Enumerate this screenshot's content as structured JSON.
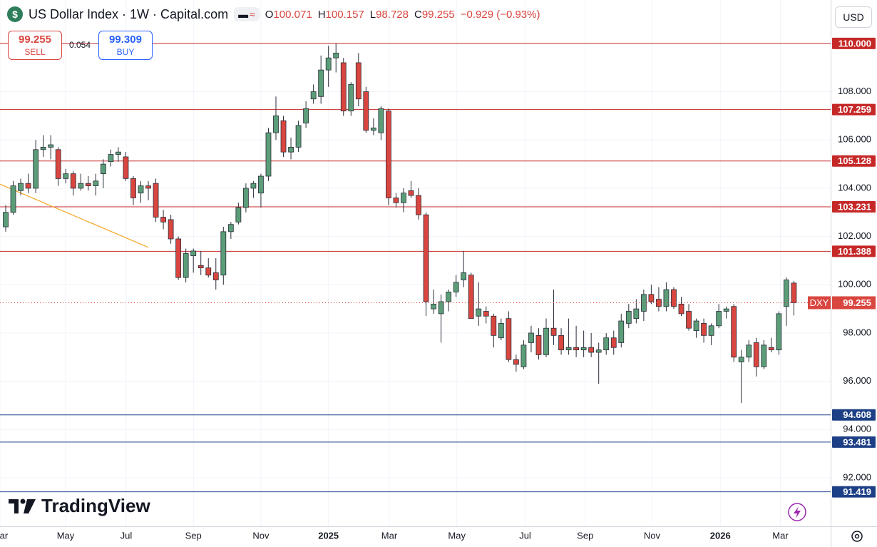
{
  "header": {
    "symbol": "US Dollar Index · 1W · Capital.com",
    "ohlc": [
      {
        "label": "O",
        "value": "100.071"
      },
      {
        "label": "H",
        "value": "100.157"
      },
      {
        "label": "L",
        "value": "98.728"
      },
      {
        "label": "C",
        "value": "99.255"
      }
    ],
    "change": "−0.929 (−0.93%)",
    "currency": "USD"
  },
  "trade": {
    "sell_price": "99.255",
    "sell_label": "SELL",
    "spread": "0.054",
    "buy_price": "99.309",
    "buy_label": "BUY"
  },
  "logo": "TradingView",
  "chart_data": {
    "type": "candlestick",
    "candles": {
      "open": [
        102.4,
        103.0,
        103.9,
        104.2,
        104.0,
        105.6,
        105.7,
        105.6,
        104.4,
        104.6,
        104.0,
        104.2,
        104.1,
        104.6,
        105.1,
        105.4,
        105.3,
        104.4,
        103.8,
        104.1,
        104.2,
        102.8,
        102.7,
        101.9,
        100.3,
        101.2,
        100.8,
        100.7,
        100.5,
        100.4,
        102.2,
        102.6,
        103.2,
        104.0,
        103.8,
        104.5,
        106.3,
        106.8,
        105.5,
        105.7,
        106.7,
        107.7,
        107.8,
        108.9,
        109.4,
        109.2,
        107.2,
        109.2,
        108.0,
        106.4,
        106.3,
        107.2,
        103.6,
        103.4,
        103.9,
        103.7,
        102.9,
        99.0,
        98.8,
        99.3,
        99.7,
        100.2,
        100.4,
        98.7,
        98.9,
        98.7,
        97.8,
        98.6,
        96.9,
        96.6,
        97.6,
        97.9,
        97.1,
        98.2,
        97.9,
        97.3,
        97.4,
        97.3,
        97.4,
        97.2,
        97.3,
        97.8,
        97.6,
        98.4,
        98.6,
        98.9,
        99.6,
        99.4,
        99.1,
        99.8,
        99.2,
        98.9,
        98.1,
        98.4,
        97.9,
        98.3,
        98.9,
        99.1,
        96.8,
        97.0,
        97.6,
        96.6,
        97.4,
        97.3,
        99.1,
        100.071
      ],
      "high": [
        103.3,
        104.3,
        104.4,
        104.6,
        106.0,
        106.2,
        106.2,
        105.7,
        104.8,
        104.7,
        104.6,
        104.5,
        104.6,
        105.2,
        105.6,
        105.7,
        105.5,
        104.5,
        104.3,
        104.3,
        104.4,
        103.1,
        102.9,
        102.0,
        101.5,
        101.5,
        101.4,
        101.1,
        101.1,
        102.4,
        102.6,
        103.4,
        104.2,
        104.3,
        104.6,
        106.5,
        107.8,
        107.0,
        106.1,
        106.8,
        107.6,
        108.3,
        109.5,
        109.9,
        110.0,
        109.4,
        108.4,
        109.6,
        108.2,
        106.9,
        107.4,
        107.3,
        103.8,
        104.0,
        104.3,
        104.0,
        103.0,
        99.8,
        99.6,
        99.8,
        100.4,
        101.4,
        100.5,
        100.1,
        99.1,
        98.8,
        98.6,
        98.9,
        97.1,
        97.7,
        98.3,
        98.2,
        98.6,
        99.8,
        98.2,
        98.6,
        98.3,
        98.1,
        98.0,
        97.6,
        98.0,
        98.1,
        98.8,
        99.2,
        99.4,
        99.8,
        100.0,
        99.9,
        100.1,
        99.9,
        99.5,
        99.2,
        98.6,
        98.6,
        98.4,
        99.2,
        99.1,
        99.2,
        97.3,
        97.7,
        97.8,
        97.7,
        97.8,
        98.9,
        100.3,
        100.157
      ],
      "low": [
        102.2,
        102.9,
        103.7,
        103.8,
        103.8,
        105.3,
        105.2,
        104.1,
        104.2,
        103.7,
        103.9,
        103.9,
        103.7,
        104.0,
        104.9,
        105.1,
        104.3,
        103.3,
        103.4,
        103.5,
        102.6,
        102.3,
        101.7,
        100.2,
        100.1,
        100.5,
        100.4,
        100.3,
        99.8,
        100.0,
        101.9,
        102.5,
        103.0,
        103.6,
        103.2,
        104.3,
        106.0,
        105.3,
        105.2,
        105.5,
        106.5,
        107.5,
        107.5,
        108.2,
        108.8,
        107.0,
        107.0,
        107.4,
        106.3,
        106.2,
        106.0,
        103.3,
        103.2,
        103.0,
        103.6,
        102.7,
        98.7,
        98.8,
        97.6,
        98.9,
        99.5,
        99.9,
        98.6,
        98.3,
        98.4,
        97.4,
        97.7,
        96.8,
        96.4,
        96.5,
        97.2,
        96.9,
        97.0,
        97.5,
        97.1,
        97.1,
        97.0,
        97.0,
        97.0,
        95.9,
        97.1,
        97.1,
        97.4,
        98.2,
        98.4,
        98.5,
        99.2,
        98.9,
        98.9,
        99.0,
        98.7,
        98.1,
        97.8,
        97.6,
        97.5,
        98.2,
        98.6,
        96.8,
        95.1,
        96.8,
        96.2,
        96.5,
        97.2,
        97.1,
        98.3,
        98.728
      ],
      "close": [
        103.0,
        104.1,
        104.2,
        104.0,
        105.6,
        105.7,
        105.8,
        104.4,
        104.6,
        104.0,
        104.2,
        104.1,
        104.3,
        105.0,
        105.4,
        105.5,
        104.4,
        103.6,
        104.1,
        104.0,
        102.8,
        102.6,
        101.9,
        100.3,
        101.3,
        101.4,
        100.7,
        100.4,
        100.2,
        102.2,
        102.5,
        103.2,
        104.0,
        104.2,
        104.5,
        106.3,
        107.0,
        105.5,
        105.7,
        106.6,
        107.3,
        108.0,
        108.9,
        109.4,
        109.6,
        107.2,
        108.3,
        107.7,
        106.4,
        106.5,
        107.3,
        103.6,
        103.4,
        103.8,
        103.7,
        102.9,
        99.3,
        99.2,
        99.3,
        99.7,
        100.1,
        100.5,
        98.6,
        99.0,
        98.7,
        97.9,
        98.4,
        96.9,
        96.7,
        97.5,
        98.0,
        97.1,
        98.2,
        97.9,
        97.3,
        97.4,
        97.3,
        97.4,
        97.2,
        97.3,
        97.8,
        97.4,
        98.5,
        98.9,
        99.0,
        99.6,
        99.3,
        99.1,
        99.8,
        99.1,
        98.8,
        98.2,
        98.5,
        97.9,
        98.3,
        98.9,
        99.0,
        97.0,
        97.0,
        97.5,
        96.6,
        97.5,
        97.3,
        98.8,
        100.2,
        99.255
      ],
      "up_color": "#5b9d78",
      "down_color": "#d9463f"
    },
    "xlim": [
      -0.76,
      109.9
    ],
    "xticks": [
      {
        "value": -0.76,
        "label": "Mar"
      },
      {
        "value": 7.98,
        "label": "May"
      },
      {
        "value": 16.05,
        "label": "Jul"
      },
      {
        "value": 25.0,
        "label": "Sep"
      },
      {
        "value": 34.0,
        "label": "Nov"
      },
      {
        "value": 43.0,
        "label": "2025"
      },
      {
        "value": 51.1,
        "label": "Mar"
      },
      {
        "value": 60.1,
        "label": "May"
      },
      {
        "value": 69.2,
        "label": "Jul"
      },
      {
        "value": 77.2,
        "label": "Sep"
      },
      {
        "value": 86.1,
        "label": "Nov"
      },
      {
        "value": 95.2,
        "label": "2026"
      },
      {
        "value": 103.2,
        "label": "Mar"
      }
    ],
    "ylim": [
      89.99,
      111.8
    ],
    "yticks": [
      {
        "value": 92,
        "label": "92.000"
      },
      {
        "value": 94,
        "label": "94.000"
      },
      {
        "value": 96,
        "label": "96.000"
      },
      {
        "value": 98,
        "label": "98.000"
      },
      {
        "value": 100,
        "label": "100.000"
      },
      {
        "value": 102,
        "label": "102.000"
      },
      {
        "value": 104,
        "label": "104.000"
      },
      {
        "value": 106,
        "label": "106.000"
      },
      {
        "value": 108,
        "label": "108.000"
      }
    ],
    "grid": true,
    "levels": [
      {
        "value": 110,
        "label": "110.000",
        "color": "#c62828"
      },
      {
        "value": 107.259,
        "label": "107.259",
        "color": "#c62828"
      },
      {
        "value": 105.128,
        "label": "105.128",
        "color": "#c62828"
      },
      {
        "value": 103.231,
        "label": "103.231",
        "color": "#c62828"
      },
      {
        "value": 101.388,
        "label": "101.388",
        "color": "#c62828"
      },
      {
        "value": 94.608,
        "label": "94.608",
        "color": "#1c3f86"
      },
      {
        "value": 93.481,
        "label": "93.481",
        "color": "#1c3f86"
      },
      {
        "value": 91.419,
        "label": "91.419",
        "color": "#1c3f86"
      }
    ],
    "last": {
      "name": "DXY",
      "value": 99.255,
      "label": "99.255",
      "color": "#d9463f"
    },
    "trendline": {
      "x": [
        -0.76,
        19.0
      ],
      "y": [
        104.17,
        101.55
      ],
      "color": "#f5a623"
    }
  }
}
